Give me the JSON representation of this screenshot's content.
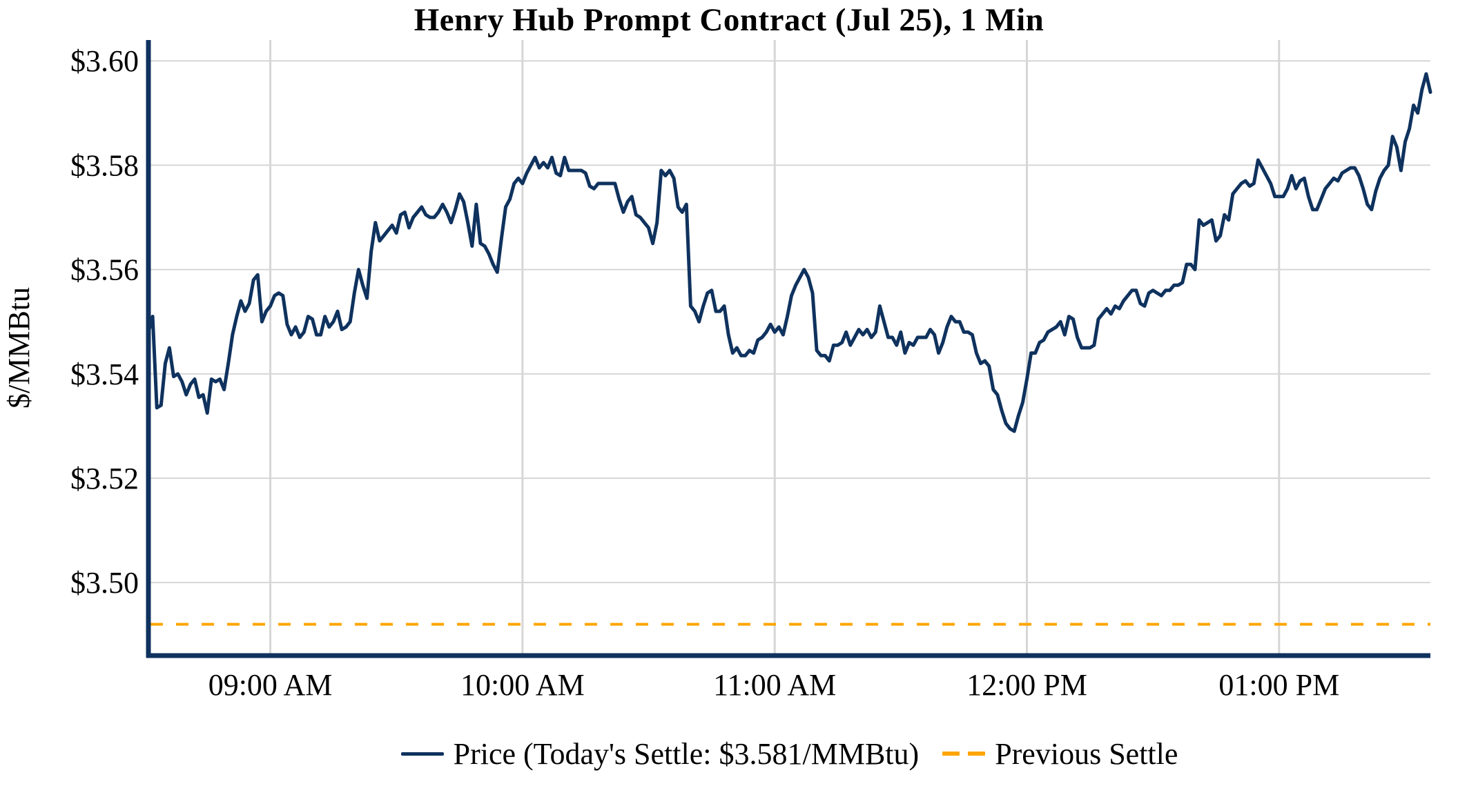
{
  "title": "Henry Hub Prompt Contract (Jul 25), 1 Min",
  "legend": {
    "price_label": "Price (Today's Settle: $3.581/MMBtu)",
    "previous_settle_label": "Previous Settle"
  },
  "colors": {
    "price_line": "#0f325e",
    "previous_settle_line": "#FFA500",
    "gridline": "#d6d6d6",
    "text": "#000000",
    "background": "#ffffff"
  },
  "chart_data": {
    "type": "line",
    "title": "Henry Hub Prompt Contract (Jul 25), 1 Min",
    "xlabel": "",
    "ylabel": "$/MMBtu",
    "grid": true,
    "legend_position": "bottom-center",
    "ylim": [
      3.486,
      3.604
    ],
    "x_start": "08:31",
    "x_end": "13:36",
    "interval_minutes": 1,
    "today_settle": 3.581,
    "previous_settle": 3.492,
    "x_ticks": [
      {
        "time": "09:00",
        "label": "09:00 AM"
      },
      {
        "time": "10:00",
        "label": "10:00 AM"
      },
      {
        "time": "11:00",
        "label": "11:00 AM"
      },
      {
        "time": "12:00",
        "label": "12:00 PM"
      },
      {
        "time": "13:00",
        "label": "01:00 PM"
      }
    ],
    "y_ticks": [
      {
        "value": 3.5,
        "label": "$3.50"
      },
      {
        "value": 3.52,
        "label": "$3.52"
      },
      {
        "value": 3.54,
        "label": "$3.54"
      },
      {
        "value": 3.56,
        "label": "$3.56"
      },
      {
        "value": 3.58,
        "label": "$3.58"
      },
      {
        "value": 3.6,
        "label": "$3.60"
      }
    ],
    "series": [
      {
        "name": "Price (Today's Settle: $3.581/MMBtu)",
        "style": "solid",
        "color": "#0f325e",
        "unit": "$/MMBtu",
        "start_time": "08:31",
        "values": [
          3.548,
          3.551,
          3.5335,
          3.534,
          3.542,
          3.545,
          3.5395,
          3.54,
          3.5385,
          3.536,
          3.538,
          3.539,
          3.5355,
          3.536,
          3.5325,
          3.539,
          3.5385,
          3.539,
          3.537,
          3.542,
          3.5475,
          3.551,
          3.554,
          3.552,
          3.5535,
          3.558,
          3.559,
          3.55,
          3.552,
          3.553,
          3.555,
          3.5555,
          3.555,
          3.5495,
          3.5475,
          3.549,
          3.547,
          3.548,
          3.551,
          3.5505,
          3.5475,
          3.5475,
          3.551,
          3.549,
          3.55,
          3.552,
          3.5485,
          3.549,
          3.55,
          3.5555,
          3.56,
          3.557,
          3.5545,
          3.5635,
          3.569,
          3.5655,
          3.5665,
          3.5675,
          3.5685,
          3.567,
          3.5705,
          3.571,
          3.568,
          3.57,
          3.571,
          3.572,
          3.5705,
          3.57,
          3.57,
          3.571,
          3.5725,
          3.571,
          3.569,
          3.5715,
          3.5745,
          3.573,
          3.569,
          3.5645,
          3.5725,
          3.565,
          3.5645,
          3.563,
          3.561,
          3.5595,
          3.566,
          3.572,
          3.5735,
          3.5765,
          3.5775,
          3.5765,
          3.5785,
          3.58,
          3.5815,
          3.5795,
          3.5805,
          3.5795,
          3.5815,
          3.5785,
          3.578,
          3.5815,
          3.579,
          3.579,
          3.579,
          3.579,
          3.5785,
          3.576,
          3.5755,
          3.5765,
          3.5765,
          3.5765,
          3.5765,
          3.5765,
          3.5735,
          3.571,
          3.573,
          3.574,
          3.5705,
          3.57,
          3.569,
          3.568,
          3.565,
          3.569,
          3.579,
          3.578,
          3.579,
          3.5775,
          3.572,
          3.571,
          3.5725,
          3.553,
          3.552,
          3.55,
          3.553,
          3.5555,
          3.556,
          3.552,
          3.552,
          3.553,
          3.5475,
          3.544,
          3.545,
          3.5435,
          3.5435,
          3.5445,
          3.544,
          3.5465,
          3.547,
          3.548,
          3.5495,
          3.548,
          3.549,
          3.5475,
          3.551,
          3.555,
          3.557,
          3.5585,
          3.56,
          3.5585,
          3.5555,
          3.5445,
          3.5435,
          3.5435,
          3.5425,
          3.5455,
          3.5455,
          3.546,
          3.548,
          3.5455,
          3.547,
          3.5485,
          3.5475,
          3.5485,
          3.547,
          3.548,
          3.553,
          3.55,
          3.547,
          3.547,
          3.5455,
          3.548,
          3.544,
          3.546,
          3.5455,
          3.547,
          3.547,
          3.547,
          3.5485,
          3.5475,
          3.544,
          3.546,
          3.549,
          3.551,
          3.55,
          3.55,
          3.548,
          3.548,
          3.5475,
          3.544,
          3.542,
          3.5425,
          3.5415,
          3.537,
          3.536,
          3.533,
          3.5305,
          3.5295,
          3.529,
          3.532,
          3.5345,
          3.539,
          3.544,
          3.544,
          3.546,
          3.5465,
          3.548,
          3.5485,
          3.549,
          3.55,
          3.5475,
          3.551,
          3.5505,
          3.547,
          3.545,
          3.545,
          3.545,
          3.5455,
          3.5505,
          3.5515,
          3.5525,
          3.5515,
          3.553,
          3.5525,
          3.554,
          3.555,
          3.556,
          3.556,
          3.5535,
          3.553,
          3.5555,
          3.556,
          3.5555,
          3.555,
          3.556,
          3.556,
          3.557,
          3.557,
          3.5575,
          3.561,
          3.561,
          3.56,
          3.5695,
          3.5685,
          3.569,
          3.5695,
          3.5655,
          3.5665,
          3.5705,
          3.5695,
          3.5745,
          3.5755,
          3.5765,
          3.577,
          3.576,
          3.5765,
          3.581,
          3.5795,
          3.578,
          3.5765,
          3.574,
          3.574,
          3.574,
          3.5755,
          3.578,
          3.5755,
          3.577,
          3.5775,
          3.574,
          3.5715,
          3.5715,
          3.5735,
          3.5755,
          3.5765,
          3.5775,
          3.577,
          3.5785,
          3.579,
          3.5795,
          3.5795,
          3.578,
          3.5755,
          3.5725,
          3.5715,
          3.575,
          3.5775,
          3.579,
          3.58,
          3.5855,
          3.5835,
          3.579,
          3.5845,
          3.587,
          3.5915,
          3.59,
          3.5945,
          3.5975,
          3.594
        ]
      },
      {
        "name": "Previous Settle",
        "style": "dashed",
        "color": "#FFA500",
        "unit": "$/MMBtu",
        "value": 3.492
      }
    ]
  }
}
